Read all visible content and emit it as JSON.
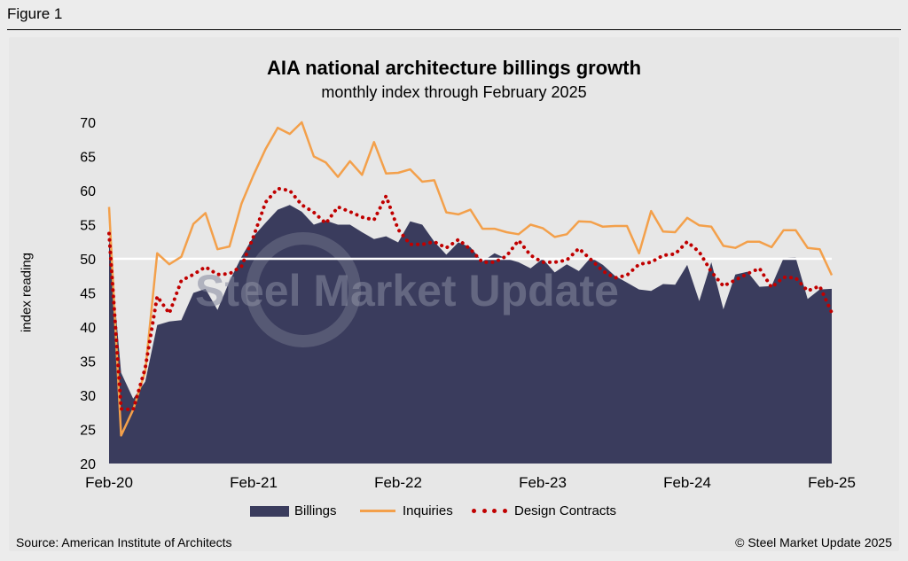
{
  "figure_label": "Figure 1",
  "source": "Source: American Institute of Architects",
  "copyright": "© Steel Market Update 2025",
  "watermark": "Steel Market Update",
  "chart_data": {
    "type": "area+line",
    "title": "AIA national architecture billings growth",
    "subtitle": "monthly index through February 2025",
    "ylabel": "index reading",
    "xlabel": "",
    "ylim": [
      20,
      70
    ],
    "yticks": [
      20,
      25,
      30,
      35,
      40,
      45,
      50,
      55,
      60,
      65,
      70
    ],
    "reference_line": 50,
    "x_tick_labels": [
      "Feb-20",
      "Feb-21",
      "Feb-22",
      "Feb-23",
      "Feb-24",
      "Feb-25"
    ],
    "x_tick_indices": [
      0,
      12,
      24,
      36,
      48,
      60
    ],
    "colors": {
      "billings": "#3a3c5d",
      "inquiries": "#f3a04b",
      "design_contracts": "#c00000",
      "reference": "#ffffff"
    },
    "series": [
      {
        "name": "Billings",
        "style": "area",
        "values": [
          53.3,
          33.3,
          29.5,
          32.0,
          40.3,
          40.8,
          41.0,
          45.0,
          45.6,
          42.5,
          46.7,
          50.3,
          53.3,
          55.3,
          57.2,
          57.9,
          56.9,
          55.0,
          55.6,
          55.0,
          55.0,
          53.9,
          52.9,
          53.3,
          52.4,
          55.5,
          55.0,
          52.5,
          50.6,
          52.4,
          51.7,
          49.6,
          50.8,
          50.0,
          49.5,
          48.6,
          50.0,
          48.0,
          49.2,
          48.2,
          50.2,
          49.1,
          47.5,
          46.5,
          45.5,
          45.3,
          46.3,
          46.2,
          49.1,
          43.8,
          49.5,
          42.6,
          47.7,
          48.1,
          45.9,
          46.0,
          50.1,
          50.2,
          44.1,
          45.5,
          45.6
        ]
      },
      {
        "name": "Inquiries",
        "style": "line",
        "values": [
          57.6,
          24.1,
          27.9,
          33.5,
          50.8,
          49.2,
          50.3,
          55.1,
          56.7,
          51.4,
          51.8,
          58.1,
          62.3,
          66.1,
          69.2,
          68.3,
          70.0,
          65.0,
          64.1,
          62.0,
          64.3,
          62.3,
          67.1,
          62.5,
          62.6,
          63.1,
          61.3,
          61.5,
          56.8,
          56.5,
          57.2,
          54.4,
          54.4,
          53.9,
          53.6,
          55.0,
          54.5,
          53.2,
          53.6,
          55.5,
          55.4,
          54.7,
          54.8,
          54.8,
          50.8,
          57.0,
          54.0,
          53.9,
          56.0,
          54.9,
          54.7,
          51.9,
          51.6,
          52.5,
          52.5,
          51.7,
          54.2,
          54.2,
          51.6,
          51.4,
          47.6
        ]
      },
      {
        "name": "Design Contracts",
        "style": "dotted",
        "values": [
          53.7,
          28.0,
          27.9,
          34.0,
          44.5,
          42.0,
          46.8,
          47.7,
          48.8,
          47.7,
          47.8,
          48.9,
          53.3,
          58.3,
          60.3,
          60.0,
          57.9,
          56.8,
          55.2,
          57.6,
          56.9,
          56.1,
          55.7,
          59.2,
          54.3,
          52.1,
          52.1,
          52.5,
          51.6,
          52.8,
          51.4,
          49.5,
          49.5,
          50.4,
          52.7,
          50.5,
          49.5,
          49.5,
          49.8,
          51.5,
          49.9,
          48.2,
          47.2,
          47.6,
          49.2,
          49.5,
          50.5,
          50.7,
          52.5,
          51.0,
          48.1,
          46.0,
          46.9,
          47.8,
          48.6,
          45.8,
          47.3,
          47.2,
          45.3,
          46.0,
          42.1
        ]
      }
    ],
    "legend": {
      "placement": "bottom",
      "entries": [
        "Billings",
        "Inquiries",
        "Design Contracts"
      ]
    }
  }
}
